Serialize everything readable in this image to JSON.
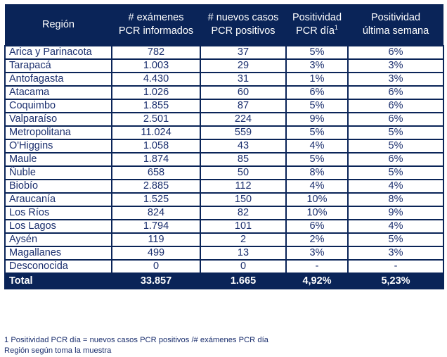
{
  "table": {
    "headers": [
      {
        "line1": "Región",
        "line2": "",
        "sup": ""
      },
      {
        "line1": "# exámenes",
        "line2": "PCR informados",
        "sup": ""
      },
      {
        "line1": "# nuevos casos",
        "line2": "PCR positivos",
        "sup": ""
      },
      {
        "line1": "Positividad",
        "line2": "PCR día",
        "sup": "1"
      },
      {
        "line1": "Positividad",
        "line2": "última semana",
        "sup": ""
      }
    ],
    "rows": [
      {
        "region": "Arica y Parinacota",
        "examenes": "782",
        "casos": "37",
        "pos_dia": "5%",
        "pos_semana": "6%"
      },
      {
        "region": "Tarapacá",
        "examenes": "1.003",
        "casos": "29",
        "pos_dia": "3%",
        "pos_semana": "3%"
      },
      {
        "region": "Antofagasta",
        "examenes": "4.430",
        "casos": "31",
        "pos_dia": "1%",
        "pos_semana": "3%"
      },
      {
        "region": "Atacama",
        "examenes": "1.026",
        "casos": "60",
        "pos_dia": "6%",
        "pos_semana": "6%"
      },
      {
        "region": "Coquimbo",
        "examenes": "1.855",
        "casos": "87",
        "pos_dia": "5%",
        "pos_semana": "6%"
      },
      {
        "region": "Valparaíso",
        "examenes": "2.501",
        "casos": "224",
        "pos_dia": "9%",
        "pos_semana": "6%"
      },
      {
        "region": "Metropolitana",
        "examenes": "11.024",
        "casos": "559",
        "pos_dia": "5%",
        "pos_semana": "5%"
      },
      {
        "region": "O'Higgins",
        "examenes": "1.058",
        "casos": "43",
        "pos_dia": "4%",
        "pos_semana": "5%"
      },
      {
        "region": "Maule",
        "examenes": "1.874",
        "casos": "85",
        "pos_dia": "5%",
        "pos_semana": "6%"
      },
      {
        "region": "Ñuble",
        "examenes": "658",
        "casos": "50",
        "pos_dia": "8%",
        "pos_semana": "5%"
      },
      {
        "region": "Biobío",
        "examenes": "2.885",
        "casos": "112",
        "pos_dia": "4%",
        "pos_semana": "4%"
      },
      {
        "region": "Araucanía",
        "examenes": "1.525",
        "casos": "150",
        "pos_dia": "10%",
        "pos_semana": "8%"
      },
      {
        "region": "Los Ríos",
        "examenes": "824",
        "casos": "82",
        "pos_dia": "10%",
        "pos_semana": "9%"
      },
      {
        "region": "Los Lagos",
        "examenes": "1.794",
        "casos": "101",
        "pos_dia": "6%",
        "pos_semana": "4%"
      },
      {
        "region": "Aysén",
        "examenes": "119",
        "casos": "2",
        "pos_dia": "2%",
        "pos_semana": "5%"
      },
      {
        "region": "Magallanes",
        "examenes": "499",
        "casos": "13",
        "pos_dia": "3%",
        "pos_semana": "3%"
      },
      {
        "region": "Desconocida",
        "examenes": "0",
        "casos": "0",
        "pos_dia": "-",
        "pos_semana": "-"
      }
    ],
    "total": {
      "region": "Total",
      "examenes": "33.857",
      "casos": "1.665",
      "pos_dia": "4,92%",
      "pos_semana": "5,23%"
    }
  },
  "notes": {
    "footnote": "1 Positividad PCR día = nuevos casos PCR positivos /# exámenes PCR día",
    "source": "Región según toma la muestra"
  },
  "colors": {
    "header_bg": "#0a2458",
    "header_text": "#ffffff",
    "body_text": "#1b2f6e"
  }
}
